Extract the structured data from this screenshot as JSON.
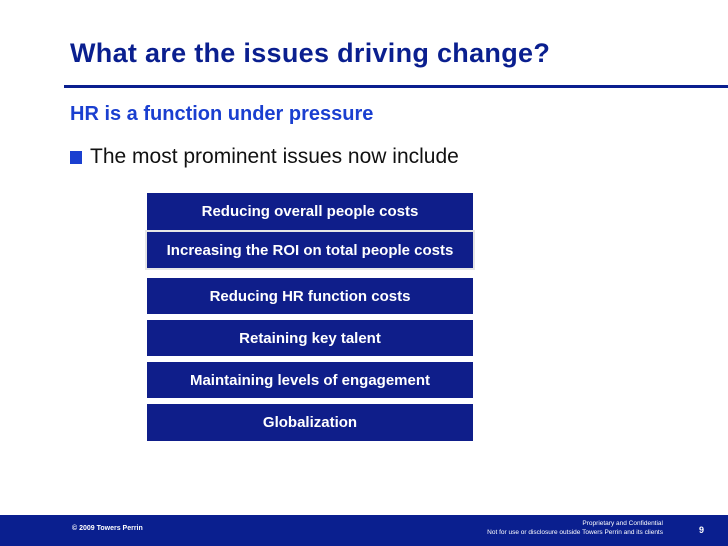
{
  "slide": {
    "title": "What are the issues driving change?",
    "subtitle": "HR is a function under pressure",
    "bullet": "The most prominent issues now include"
  },
  "issues": [
    "Reducing overall people costs",
    "Increasing the ROI on total people costs",
    "Reducing HR function costs",
    "Retaining key talent",
    "Maintaining levels of engagement",
    "Globalization"
  ],
  "footer": {
    "copyright": "© 2009 Towers Perrin",
    "proprietary": "Proprietary and Confidential",
    "disclosure": "Not for use or disclosure outside Towers Perrin and its clients",
    "page_number": "9"
  },
  "colors": {
    "title": "#0a1f8f",
    "subtitle": "#1a3fd0",
    "box": "#0f1e8a",
    "footer_bar": "#0a1f8f"
  }
}
